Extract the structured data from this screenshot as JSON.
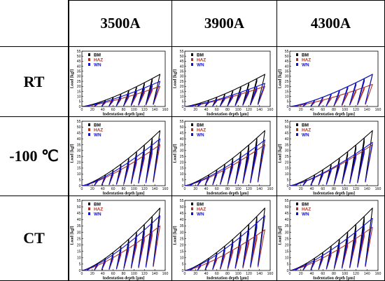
{
  "grid": {
    "column_headers": [
      "3500A",
      "3900A",
      "4300A"
    ],
    "row_headers": [
      "RT",
      "-100 ℃",
      "CT"
    ]
  },
  "colors": {
    "BM": "#000000",
    "HAZ": "#b03020",
    "WN": "#1010d0"
  },
  "chart_data": [
    {
      "type": "line",
      "row": "RT",
      "column": "3500A",
      "xlabel": "Indentation depth [μm]",
      "ylabel": "Load [kgf]",
      "xlim": [
        0,
        160
      ],
      "ylim": [
        0,
        55
      ],
      "xticks": [
        0,
        20,
        40,
        60,
        80,
        100,
        120,
        140,
        160
      ],
      "yticks": [
        0,
        5,
        10,
        15,
        20,
        25,
        30,
        35,
        40,
        45,
        50,
        55
      ],
      "legend_position": "top-left",
      "series": [
        {
          "name": "BM",
          "max_load": 32,
          "max_depth": 150
        },
        {
          "name": "HAZ",
          "max_load": 20,
          "max_depth": 150
        },
        {
          "name": "WN",
          "max_load": 25,
          "max_depth": 150
        }
      ]
    },
    {
      "type": "line",
      "row": "RT",
      "column": "3900A",
      "xlabel": "Indentation depth [μm]",
      "ylabel": "Load [kgf]",
      "xlim": [
        0,
        160
      ],
      "ylim": [
        0,
        55
      ],
      "xticks": [
        0,
        20,
        40,
        60,
        80,
        100,
        120,
        140,
        160
      ],
      "yticks": [
        0,
        5,
        10,
        15,
        20,
        25,
        30,
        35,
        40,
        45,
        50,
        55
      ],
      "legend_position": "top-left",
      "series": [
        {
          "name": "BM",
          "max_load": 32,
          "max_depth": 150
        },
        {
          "name": "HAZ",
          "max_load": 20,
          "max_depth": 150
        },
        {
          "name": "WN",
          "max_load": 23,
          "max_depth": 150
        }
      ]
    },
    {
      "type": "line",
      "row": "RT",
      "column": "4300A",
      "xlabel": "Indentation depth [μm]",
      "ylabel": "Load [kgf]",
      "xlim": [
        0,
        160
      ],
      "ylim": [
        0,
        55
      ],
      "xticks": [
        0,
        20,
        40,
        60,
        80,
        100,
        120,
        140,
        160
      ],
      "yticks": [
        0,
        5,
        10,
        15,
        20,
        25,
        30,
        35,
        40,
        45,
        50,
        55
      ],
      "legend_position": "top-left",
      "series": [
        {
          "name": "BM",
          "max_load": 32,
          "max_depth": 150
        },
        {
          "name": "HAZ",
          "max_load": 22,
          "max_depth": 150
        },
        {
          "name": "WN",
          "max_load": 32,
          "max_depth": 150
        }
      ]
    },
    {
      "type": "line",
      "row": "-100 ℃",
      "column": "3500A",
      "xlabel": "Indentation depth [μm]",
      "ylabel": "Load [kgf]",
      "xlim": [
        0,
        160
      ],
      "ylim": [
        0,
        55
      ],
      "xticks": [
        0,
        20,
        40,
        60,
        80,
        100,
        120,
        140,
        160
      ],
      "yticks": [
        0,
        5,
        10,
        15,
        20,
        25,
        30,
        35,
        40,
        45,
        50,
        55
      ],
      "legend_position": "top-left",
      "series": [
        {
          "name": "BM",
          "max_load": 47,
          "max_depth": 150
        },
        {
          "name": "HAZ",
          "max_load": 35,
          "max_depth": 150
        },
        {
          "name": "WN",
          "max_load": 40,
          "max_depth": 150
        }
      ]
    },
    {
      "type": "line",
      "row": "-100 ℃",
      "column": "3900A",
      "xlabel": "Indentation depth [μm]",
      "ylabel": "Load [kgf]",
      "xlim": [
        0,
        160
      ],
      "ylim": [
        0,
        55
      ],
      "xticks": [
        0,
        20,
        40,
        60,
        80,
        100,
        120,
        140,
        160
      ],
      "yticks": [
        0,
        5,
        10,
        15,
        20,
        25,
        30,
        35,
        40,
        45,
        50,
        55
      ],
      "legend_position": "top-left",
      "series": [
        {
          "name": "BM",
          "max_load": 47,
          "max_depth": 150
        },
        {
          "name": "HAZ",
          "max_load": 35,
          "max_depth": 150
        },
        {
          "name": "WN",
          "max_load": 39,
          "max_depth": 150
        }
      ]
    },
    {
      "type": "line",
      "row": "-100 ℃",
      "column": "4300A",
      "xlabel": "Indentation depth [μm]",
      "ylabel": "Load [kgf]",
      "xlim": [
        0,
        160
      ],
      "ylim": [
        0,
        55
      ],
      "xticks": [
        0,
        20,
        40,
        60,
        80,
        100,
        120,
        140,
        160
      ],
      "yticks": [
        0,
        5,
        10,
        15,
        20,
        25,
        30,
        35,
        40,
        45,
        50,
        55
      ],
      "legend_position": "top-left",
      "series": [
        {
          "name": "BM",
          "max_load": 47,
          "max_depth": 150
        },
        {
          "name": "HAZ",
          "max_load": 35,
          "max_depth": 150
        },
        {
          "name": "WN",
          "max_load": 37,
          "max_depth": 150
        }
      ]
    },
    {
      "type": "line",
      "row": "CT",
      "column": "3500A",
      "xlabel": "Indentation depth [μm]",
      "ylabel": "Load [kgf]",
      "xlim": [
        0,
        160
      ],
      "ylim": [
        0,
        55
      ],
      "xticks": [
        0,
        20,
        40,
        60,
        80,
        100,
        120,
        140,
        160
      ],
      "yticks": [
        0,
        5,
        10,
        15,
        20,
        25,
        30,
        35,
        40,
        45,
        50,
        55
      ],
      "legend_position": "top-left",
      "series": [
        {
          "name": "BM",
          "max_load": 49,
          "max_depth": 150
        },
        {
          "name": "HAZ",
          "max_load": 35,
          "max_depth": 150
        },
        {
          "name": "WN",
          "max_load": 43,
          "max_depth": 150
        }
      ]
    },
    {
      "type": "line",
      "row": "CT",
      "column": "3900A",
      "xlabel": "Indentation depth [μm]",
      "ylabel": "Load [kgf]",
      "xlim": [
        0,
        160
      ],
      "ylim": [
        0,
        55
      ],
      "xticks": [
        0,
        20,
        40,
        60,
        80,
        100,
        120,
        140,
        160
      ],
      "yticks": [
        0,
        5,
        10,
        15,
        20,
        25,
        30,
        35,
        40,
        45,
        50,
        55
      ],
      "legend_position": "top-left",
      "series": [
        {
          "name": "BM",
          "max_load": 49,
          "max_depth": 150
        },
        {
          "name": "HAZ",
          "max_load": 32,
          "max_depth": 150
        },
        {
          "name": "WN",
          "max_load": 43,
          "max_depth": 150
        }
      ]
    },
    {
      "type": "line",
      "row": "CT",
      "column": "4300A",
      "xlabel": "Indentation depth [μm]",
      "ylabel": "Load [kgf]",
      "xlim": [
        0,
        160
      ],
      "ylim": [
        0,
        55
      ],
      "xticks": [
        0,
        20,
        40,
        60,
        80,
        100,
        120,
        140,
        160
      ],
      "yticks": [
        0,
        5,
        10,
        15,
        20,
        25,
        30,
        35,
        40,
        45,
        50,
        55
      ],
      "legend_position": "top-left",
      "series": [
        {
          "name": "BM",
          "max_load": 49,
          "max_depth": 150
        },
        {
          "name": "HAZ",
          "max_load": 34,
          "max_depth": 150
        },
        {
          "name": "WN",
          "max_load": 41,
          "max_depth": 150
        }
      ]
    }
  ]
}
